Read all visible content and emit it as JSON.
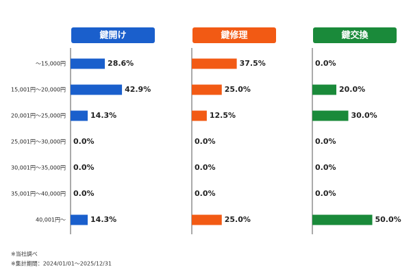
{
  "footnotes": [
    "※当社調べ",
    "※集計期間：2024/01/01～2025/12/31"
  ],
  "chart_data": [
    {
      "type": "bar",
      "title": "鍵開け",
      "color": "#1a5fcc",
      "categories": [
        "～15,000円",
        "15,001円～20,000円",
        "20,001円～25,000円",
        "25,001円～30,000円",
        "30,001円～35,000円",
        "35,001円～40,000円",
        "40,001円～"
      ],
      "values": [
        28.6,
        42.9,
        14.3,
        0.0,
        0.0,
        0.0,
        14.3
      ],
      "value_labels": [
        "28.6%",
        "42.9%",
        "14.3%",
        "0.0%",
        "0.0%",
        "0.0%",
        "14.3%"
      ]
    },
    {
      "type": "bar",
      "title": "鍵修理",
      "color": "#f25a14",
      "values": [
        37.5,
        25.0,
        12.5,
        0.0,
        0.0,
        0.0,
        25.0
      ],
      "value_labels": [
        "37.5%",
        "25.0%",
        "12.5%",
        "0.0%",
        "0.0%",
        "0.0%",
        "25.0%"
      ]
    },
    {
      "type": "bar",
      "title": "鍵交換",
      "color": "#1a8a3a",
      "values": [
        0.0,
        20.0,
        30.0,
        0.0,
        0.0,
        0.0,
        50.0
      ],
      "value_labels": [
        "0.0%",
        "20.0%",
        "30.0%",
        "0.0%",
        "0.0%",
        "0.0%",
        "50.0%"
      ]
    }
  ]
}
